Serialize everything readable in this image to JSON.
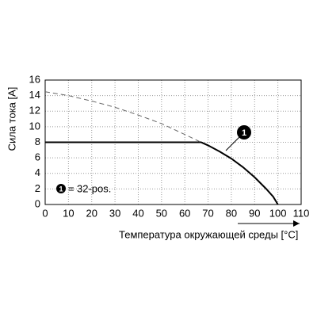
{
  "chart_data": {
    "type": "line",
    "x_label": "Температура окружающей среды [°C]",
    "y_label": "Сила тока [A]",
    "annotation": "1",
    "xlim": [
      0,
      110
    ],
    "xticks": [
      0,
      10,
      20,
      30,
      40,
      50,
      60,
      70,
      80,
      90,
      100,
      110
    ],
    "ylim": [
      0,
      16
    ],
    "yticks": [
      0,
      2,
      4,
      6,
      8,
      10,
      12,
      14,
      16
    ],
    "grid": true,
    "series": [
      {
        "name": "32-pos.",
        "color": "#000000",
        "dash": false,
        "x": [
          0,
          67,
          70,
          75,
          80,
          85,
          90,
          95,
          98,
          100
        ],
        "values": [
          8,
          8,
          7.6,
          6.8,
          5.9,
          4.8,
          3.5,
          2.0,
          1.0,
          0
        ]
      },
      {
        "color": "#666666",
        "dash": true,
        "x": [
          0,
          10,
          20,
          30,
          40,
          50,
          60,
          67
        ],
        "values": [
          14.5,
          14.0,
          13.3,
          12.5,
          11.5,
          10.4,
          9.0,
          8.0
        ]
      }
    ]
  }
}
